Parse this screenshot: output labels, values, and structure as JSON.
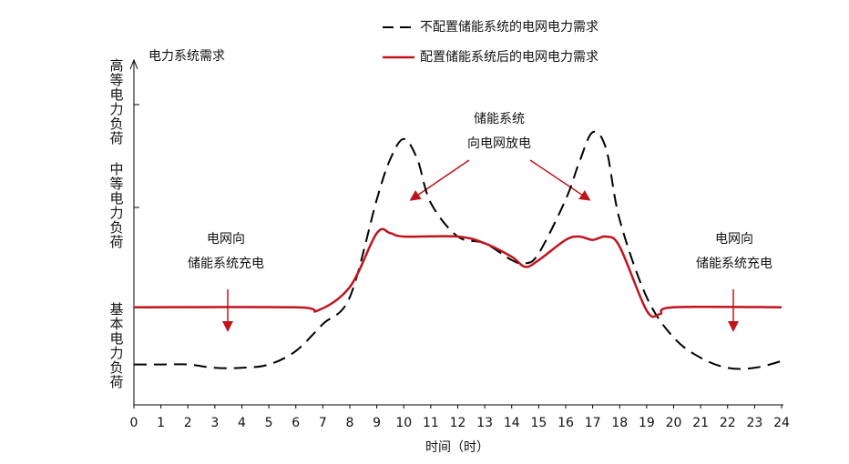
{
  "chart_data": {
    "type": "line",
    "y_axis_title": "电力系统需求",
    "x_label": "时间（时）",
    "y_band_labels": [
      "高等电力负荷",
      "中等电力负荷",
      "基本电力负荷"
    ],
    "annotations": [
      [
        "储能系统",
        "向电网放电"
      ],
      [
        "电网向",
        "储能系统充电"
      ],
      [
        "电网向",
        "储能系统充电"
      ]
    ],
    "xlim": [
      0,
      24
    ],
    "ylim": [
      0,
      100
    ],
    "xticks": [
      0,
      1,
      2,
      3,
      4,
      5,
      6,
      7,
      8,
      9,
      10,
      11,
      12,
      13,
      14,
      15,
      16,
      17,
      18,
      19,
      20,
      21,
      22,
      23,
      24
    ],
    "series": [
      {
        "name": "不配置储能系统的电网电力需求",
        "color": "#000000",
        "dash": true,
        "x": [
          0,
          1,
          2,
          3,
          4,
          5,
          6,
          7,
          8,
          9,
          9.5,
          10,
          10.5,
          11,
          12,
          13,
          14,
          14.5,
          15,
          16,
          16.5,
          17,
          17.5,
          18,
          19,
          20,
          21,
          22,
          23,
          24
        ],
        "values": [
          12,
          12,
          12,
          11,
          11,
          12,
          16,
          24,
          32,
          61,
          73,
          79,
          73,
          60,
          50,
          48,
          43,
          42,
          45,
          61,
          72,
          81,
          76,
          55,
          32,
          20,
          14,
          11,
          11,
          13
        ]
      },
      {
        "name": "配置储能系统后的电网电力需求",
        "color": "#c0141c",
        "dash": false,
        "x": [
          0,
          6,
          6.8,
          8,
          9,
          9.5,
          10,
          12,
          13,
          14,
          14.5,
          15,
          16,
          16.5,
          17,
          17.5,
          18,
          19,
          19.5,
          20,
          24
        ],
        "values": [
          29,
          29,
          28,
          35,
          51,
          51,
          50,
          50,
          48,
          44,
          41,
          43,
          49,
          50,
          49,
          50,
          47,
          28,
          27,
          29,
          29
        ]
      }
    ]
  }
}
